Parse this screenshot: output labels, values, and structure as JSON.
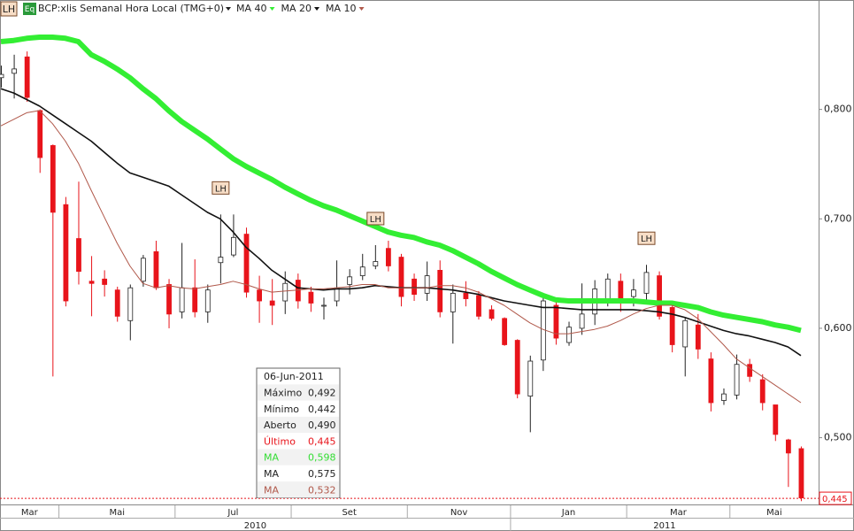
{
  "toolbar": [
    "LH",
    "Eq"
  ],
  "chart_data": {
    "type": "candlestick",
    "title": "BCP:xlis Semanal Hora Local (TMG+0)",
    "up_color": "#ffffff",
    "down_color": "#e8141b",
    "ylim": [
      0.439,
      0.9
    ],
    "yticks": [
      {
        "value": 0.5,
        "label": "0,500"
      },
      {
        "value": 0.6,
        "label": "0,600"
      },
      {
        "value": 0.7,
        "label": "0,700"
      },
      {
        "value": 0.8,
        "label": "0,800"
      }
    ],
    "categories": [
      "Mar",
      null,
      null,
      null,
      null,
      "Mai",
      null,
      null,
      null,
      null,
      null,
      null,
      null,
      null,
      "Jul",
      null,
      null,
      null,
      null,
      null,
      null,
      null,
      null,
      "Set",
      null,
      null,
      null,
      null,
      null,
      null,
      null,
      null,
      "Nov",
      null,
      null,
      null,
      null,
      null,
      null,
      null,
      "Jan",
      null,
      null,
      null,
      null,
      null,
      null,
      null,
      null,
      "Mar",
      null,
      null,
      null,
      null,
      null,
      null,
      null,
      "Mai",
      null,
      null,
      null,
      null,
      null
    ],
    "years": [
      "2010",
      null,
      null,
      null,
      null,
      null,
      null,
      null,
      null,
      null,
      null,
      null,
      null,
      null,
      null,
      null,
      null,
      null,
      null,
      null,
      null,
      null,
      null,
      null,
      null,
      null,
      null,
      null,
      null,
      null,
      null,
      null,
      null,
      null,
      null,
      null,
      null,
      null,
      null,
      null,
      "2011",
      null,
      null,
      null,
      null,
      null,
      null,
      null,
      null,
      null,
      null,
      null,
      null,
      null,
      null,
      null,
      null,
      null,
      null,
      null,
      null,
      null,
      null
    ],
    "open": [
      0.829,
      0.833,
      0.848,
      0.799,
      0.767,
      0.713,
      0.682,
      0.643,
      0.645,
      0.635,
      0.607,
      0.643,
      0.67,
      0.64,
      0.615,
      0.637,
      0.615,
      0.66,
      0.667,
      0.686,
      0.635,
      0.625,
      0.625,
      0.644,
      0.633,
      0.621,
      0.625,
      0.64,
      0.648,
      0.657,
      0.673,
      0.665,
      0.645,
      0.632,
      0.653,
      0.615,
      0.632,
      0.63,
      0.617,
      0.609,
      0.589,
      0.538,
      0.571,
      0.621,
      0.587,
      0.6,
      0.613,
      0.625,
      0.643,
      0.629,
      0.632,
      0.648,
      0.619,
      0.583,
      0.603,
      0.572,
      0.534,
      0.539,
      0.567,
      0.553,
      0.53,
      0.498,
      0.49
    ],
    "high": [
      0.84,
      0.85,
      0.853,
      0.8,
      0.768,
      0.72,
      0.734,
      0.666,
      0.653,
      0.638,
      0.64,
      0.667,
      0.68,
      0.645,
      0.678,
      0.663,
      0.64,
      0.704,
      0.704,
      0.692,
      0.648,
      0.645,
      0.652,
      0.65,
      0.638,
      0.628,
      0.662,
      0.654,
      0.668,
      0.676,
      0.68,
      0.668,
      0.65,
      0.661,
      0.662,
      0.64,
      0.643,
      0.634,
      0.621,
      0.61,
      0.59,
      0.575,
      0.63,
      0.625,
      0.606,
      0.641,
      0.644,
      0.65,
      0.65,
      0.645,
      0.658,
      0.652,
      0.622,
      0.61,
      0.613,
      0.578,
      0.545,
      0.576,
      0.572,
      0.558,
      0.53,
      0.499,
      0.492
    ],
    "low": [
      0.82,
      0.81,
      0.807,
      0.742,
      0.556,
      0.62,
      0.64,
      0.611,
      0.629,
      0.606,
      0.589,
      0.638,
      0.635,
      0.6,
      0.609,
      0.61,
      0.605,
      0.641,
      0.665,
      0.628,
      0.605,
      0.603,
      0.613,
      0.618,
      0.615,
      0.608,
      0.62,
      0.631,
      0.644,
      0.654,
      0.652,
      0.62,
      0.625,
      0.625,
      0.61,
      0.586,
      0.62,
      0.608,
      0.607,
      0.584,
      0.536,
      0.505,
      0.561,
      0.585,
      0.584,
      0.594,
      0.603,
      0.62,
      0.615,
      0.62,
      0.624,
      0.608,
      0.578,
      0.556,
      0.572,
      0.524,
      0.53,
      0.535,
      0.551,
      0.525,
      0.497,
      0.455,
      0.442
    ],
    "close": [
      0.832,
      0.837,
      0.811,
      0.756,
      0.706,
      0.625,
      0.652,
      0.641,
      0.64,
      0.611,
      0.637,
      0.664,
      0.637,
      0.613,
      0.637,
      0.615,
      0.635,
      0.665,
      0.683,
      0.633,
      0.625,
      0.621,
      0.641,
      0.625,
      0.623,
      0.621,
      0.637,
      0.647,
      0.656,
      0.661,
      0.657,
      0.629,
      0.631,
      0.648,
      0.615,
      0.632,
      0.627,
      0.611,
      0.609,
      0.585,
      0.54,
      0.57,
      0.625,
      0.591,
      0.601,
      0.613,
      0.636,
      0.645,
      0.627,
      0.635,
      0.651,
      0.611,
      0.585,
      0.607,
      0.581,
      0.532,
      0.54,
      0.567,
      0.556,
      0.532,
      0.503,
      0.486,
      0.445
    ],
    "series": [
      {
        "name": "MA 40",
        "color": "#33ee33",
        "width": 6,
        "values": [
          0.862,
          0.863,
          0.865,
          0.866,
          0.866,
          0.865,
          0.862,
          0.85,
          0.844,
          0.837,
          0.829,
          0.819,
          0.81,
          0.799,
          0.789,
          0.781,
          0.773,
          0.764,
          0.755,
          0.748,
          0.742,
          0.736,
          0.729,
          0.723,
          0.717,
          0.712,
          0.708,
          0.703,
          0.698,
          0.693,
          0.688,
          0.685,
          0.683,
          0.679,
          0.676,
          0.671,
          0.665,
          0.659,
          0.652,
          0.646,
          0.64,
          0.635,
          0.63,
          0.626,
          0.625,
          0.625,
          0.625,
          0.625,
          0.625,
          0.625,
          0.624,
          0.623,
          0.623,
          0.621,
          0.619,
          0.615,
          0.612,
          0.61,
          0.608,
          0.606,
          0.603,
          0.601,
          0.598
        ]
      },
      {
        "name": "MA 20",
        "color": "#111111",
        "width": 1.6,
        "values": [
          0.819,
          0.815,
          0.809,
          0.803,
          0.795,
          0.787,
          0.779,
          0.771,
          0.761,
          0.751,
          0.742,
          0.738,
          0.734,
          0.73,
          0.722,
          0.714,
          0.706,
          0.7,
          0.688,
          0.674,
          0.664,
          0.653,
          0.645,
          0.637,
          0.636,
          0.635,
          0.636,
          0.636,
          0.637,
          0.639,
          0.638,
          0.637,
          0.637,
          0.637,
          0.636,
          0.635,
          0.633,
          0.631,
          0.628,
          0.625,
          0.623,
          0.621,
          0.619,
          0.619,
          0.618,
          0.617,
          0.617,
          0.617,
          0.617,
          0.617,
          0.616,
          0.615,
          0.613,
          0.61,
          0.606,
          0.602,
          0.598,
          0.595,
          0.593,
          0.59,
          0.587,
          0.583,
          0.575
        ]
      },
      {
        "name": "MA 10",
        "color": "#b0584a",
        "width": 1,
        "values": [
          0.785,
          0.791,
          0.797,
          0.799,
          0.787,
          0.771,
          0.751,
          0.726,
          0.702,
          0.678,
          0.657,
          0.641,
          0.637,
          0.639,
          0.637,
          0.636,
          0.638,
          0.64,
          0.643,
          0.64,
          0.636,
          0.633,
          0.634,
          0.635,
          0.636,
          0.636,
          0.637,
          0.638,
          0.64,
          0.64,
          0.637,
          0.637,
          0.637,
          0.637,
          0.639,
          0.639,
          0.637,
          0.633,
          0.627,
          0.621,
          0.613,
          0.605,
          0.599,
          0.595,
          0.595,
          0.597,
          0.599,
          0.602,
          0.607,
          0.613,
          0.618,
          0.621,
          0.621,
          0.617,
          0.609,
          0.597,
          0.585,
          0.572,
          0.564,
          0.556,
          0.548,
          0.54,
          0.532
        ]
      }
    ],
    "annotations": [
      {
        "label": "LH",
        "at": 17
      },
      {
        "label": "LH",
        "at": 29
      },
      {
        "label": "LH",
        "at": 50
      }
    ],
    "last_label": "0,445",
    "tooltip": {
      "date": "06-Jun-2011",
      "rows": [
        {
          "name": "Máximo",
          "value": "0,492",
          "color": "#222222"
        },
        {
          "name": "Mínimo",
          "value": "0,442",
          "color": "#222222"
        },
        {
          "name": "Aberto",
          "value": "0,490",
          "color": "#222222"
        },
        {
          "name": "Último",
          "value": "0,445",
          "color": "#e8141b"
        },
        {
          "name": "MA",
          "value": "0,598",
          "color": "#33dd33"
        },
        {
          "name": "MA",
          "value": "0,575",
          "color": "#222222"
        },
        {
          "name": "MA",
          "value": "0,532",
          "color": "#b0584a"
        }
      ]
    }
  }
}
